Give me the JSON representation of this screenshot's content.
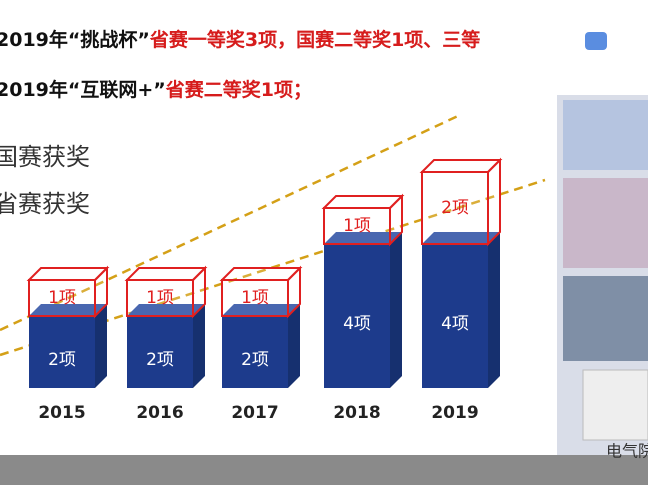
{
  "headlines": [
    {
      "black": "2019年“挑战杯”",
      "red": "省赛一等奖3项，国赛二等奖1项、三等"
    },
    {
      "black": "2019年“互联网+”",
      "red": "省赛二等奖1项；"
    }
  ],
  "chart_data": {
    "type": "bar",
    "stacked": true,
    "categories": [
      "2015",
      "2016",
      "2017",
      "2018",
      "2019"
    ],
    "series": [
      {
        "name": "省赛获奖",
        "color": "#1d3b8c",
        "values": [
          2,
          2,
          2,
          4,
          4
        ],
        "value_labels": [
          "2项",
          "2项",
          "2项",
          "4项",
          "4项"
        ]
      },
      {
        "name": "国赛获奖",
        "color": "#e02020",
        "values": [
          1,
          1,
          1,
          1,
          2
        ],
        "value_labels": [
          "1项",
          "1项",
          "1项",
          "1项",
          "2项"
        ]
      }
    ]
  },
  "watermark": "电气院团"
}
